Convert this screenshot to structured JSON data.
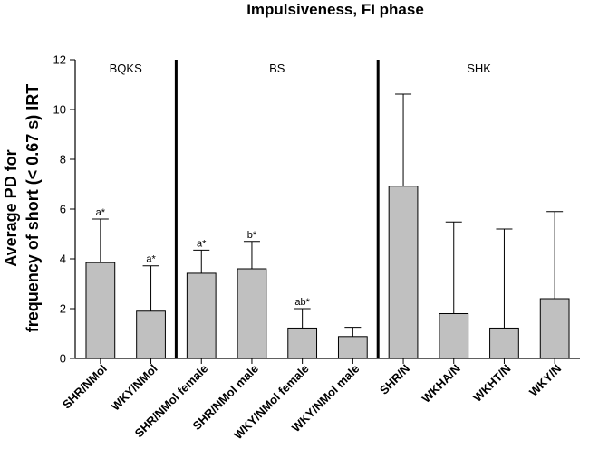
{
  "chart_data": {
    "type": "bar",
    "title": "Impulsiveness, FI phase",
    "ylabel_lines": [
      "Average PD for",
      "frequency of short (< 0.67 s) IRT"
    ],
    "xlabel": "",
    "ylim": [
      0,
      12
    ],
    "yticks": [
      0,
      2,
      4,
      6,
      8,
      10,
      12
    ],
    "categories": [
      "SHR/NMol",
      "WKY/NMol",
      "SHR/NMol female",
      "SHR/NMol male",
      "WKY/NMol female",
      "WKY/NMol male",
      "SHR/N",
      "WKHA/N",
      "WKHT/N",
      "WKY/N"
    ],
    "values": [
      3.85,
      1.9,
      3.42,
      3.6,
      1.22,
      0.88,
      6.92,
      1.8,
      1.22,
      2.4
    ],
    "error_upper": [
      5.6,
      3.72,
      4.35,
      4.7,
      2.0,
      1.25,
      10.62,
      5.48,
      5.2,
      5.9
    ],
    "significance": [
      "a*",
      "a*",
      "a*",
      "b*",
      "ab*",
      "",
      "",
      "",
      "",
      ""
    ],
    "groups": [
      {
        "label": "BQKS",
        "categories": [
          "SHR/NMol",
          "WKY/NMol"
        ]
      },
      {
        "label": "BS",
        "categories": [
          "SHR/NMol female",
          "SHR/NMol male",
          "WKY/NMol female",
          "WKY/NMol male"
        ]
      },
      {
        "label": "SHK",
        "categories": [
          "SHR/N",
          "WKHA/N",
          "WKHT/N",
          "WKY/N"
        ]
      }
    ],
    "bar_color": "#c0c0c0",
    "grid": false,
    "legend": "none"
  }
}
